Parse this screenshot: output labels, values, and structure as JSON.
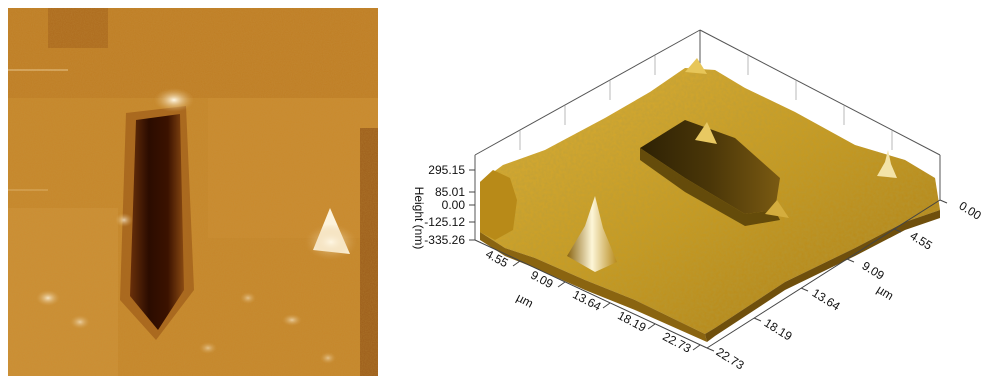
{
  "left_panel": {
    "kind": "afm-topography-2d",
    "palette": [
      "#3a1400",
      "#6b3407",
      "#9a5a10",
      "#c5861f",
      "#e2b668",
      "#fff6dc"
    ]
  },
  "right_panel": {
    "kind": "afm-topography-3d-surface",
    "surface_color": "#c99a1e",
    "z_axis": {
      "title": "Height (nm)",
      "ticks": [
        "295.15",
        "85.01",
        "0.00",
        "-125.12",
        "-335.26"
      ]
    },
    "x_axis": {
      "unit": "µm",
      "ticks": [
        "4.55",
        "9.09",
        "13.64",
        "18.19",
        "22.73"
      ]
    },
    "y_axis": {
      "unit": "µm",
      "ticks": [
        "0.00",
        "4.55",
        "9.09",
        "13.64",
        "18.19",
        "22.73"
      ]
    }
  }
}
